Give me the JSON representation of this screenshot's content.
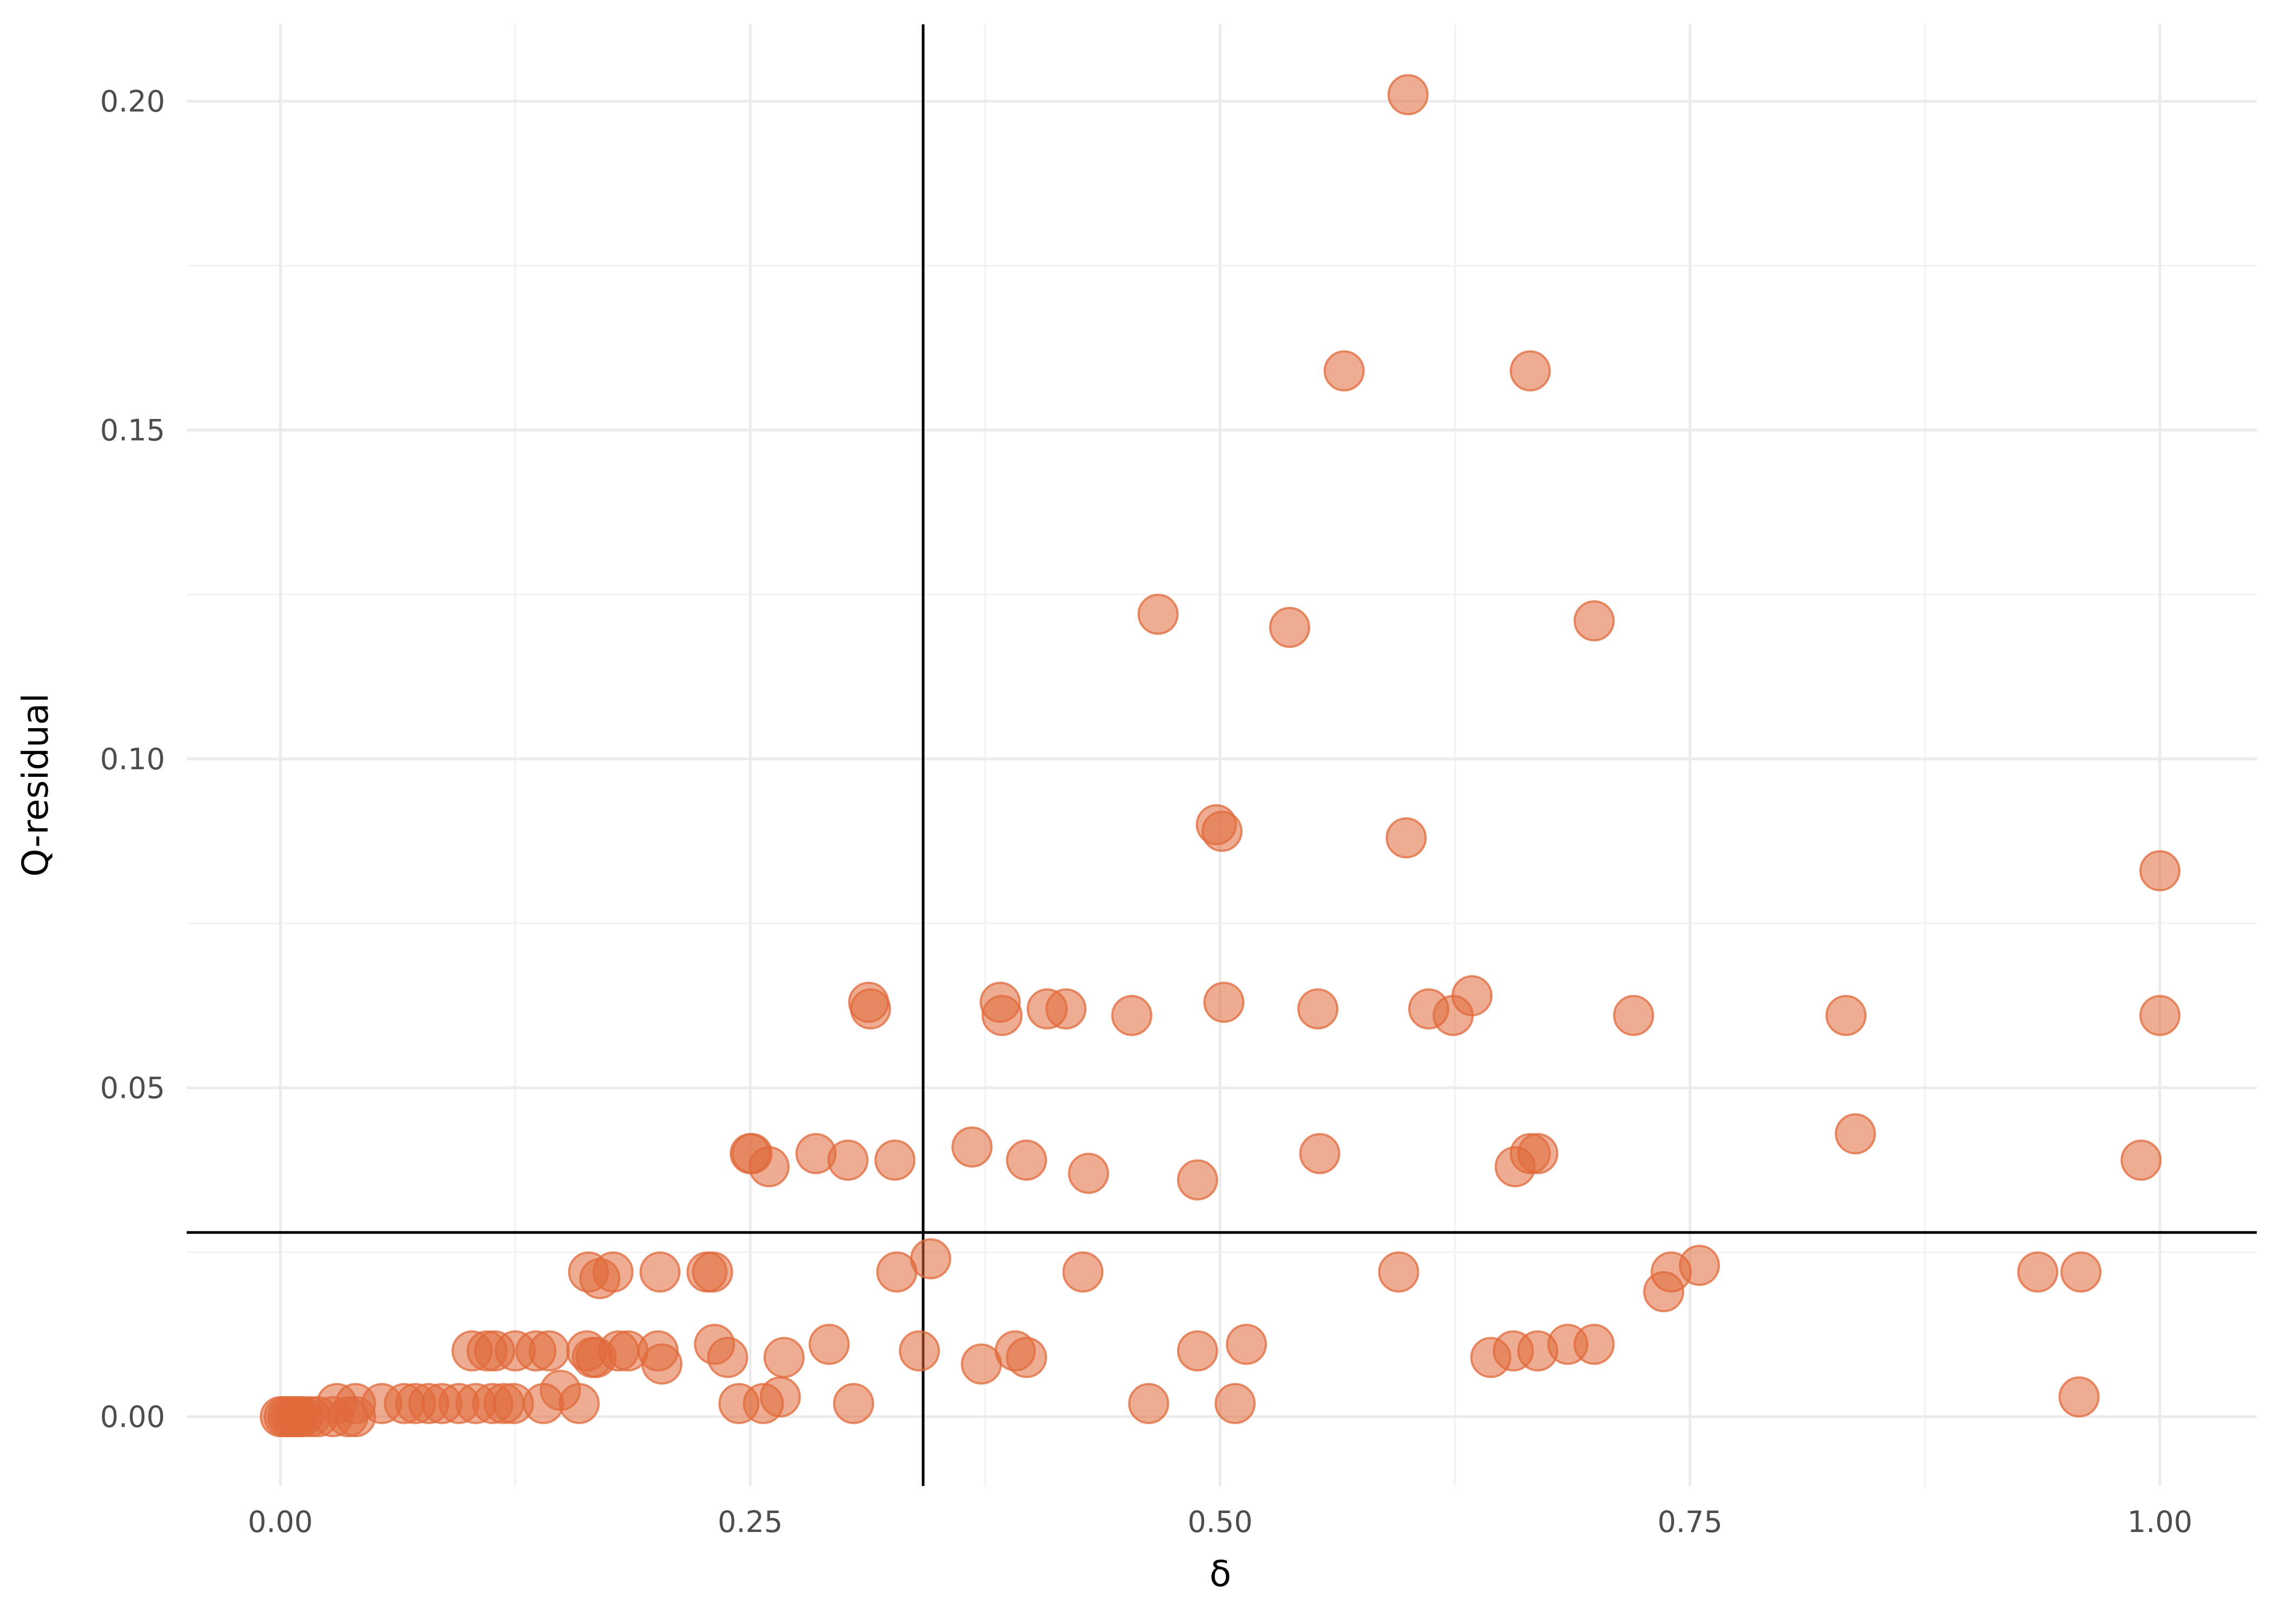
{
  "chart_data": {
    "type": "scatter",
    "xlabel": "δ",
    "ylabel": "Q-residual",
    "xlim": [
      -0.1,
      1.05
    ],
    "ylim": [
      -0.01,
      0.212
    ],
    "x_ticks": [
      0.0,
      0.25,
      0.5,
      0.75,
      1.0
    ],
    "x_tick_labels": [
      "0.00",
      "0.25",
      "0.50",
      "0.75",
      "1.00"
    ],
    "y_ticks": [
      0.0,
      0.05,
      0.1,
      0.15,
      0.2
    ],
    "y_tick_labels": [
      "0.00",
      "0.05",
      "0.10",
      "0.15",
      "0.20"
    ],
    "x_minor": [
      0.125,
      0.375,
      0.625,
      0.875
    ],
    "y_minor": [
      0.025,
      0.075,
      0.125,
      0.175
    ],
    "grid": true,
    "reference_lines": {
      "vertical_x": 0.342,
      "horizontal_y": 0.028
    },
    "point_color": "#e06a3b",
    "points": [
      [
        0.6,
        0.201
      ],
      [
        0.566,
        0.159
      ],
      [
        0.665,
        0.159
      ],
      [
        0.467,
        0.122
      ],
      [
        0.537,
        0.12
      ],
      [
        0.699,
        0.121
      ],
      [
        0.498,
        0.09
      ],
      [
        0.501,
        0.089
      ],
      [
        0.599,
        0.088
      ],
      [
        1.0,
        0.083
      ],
      [
        0.313,
        0.063
      ],
      [
        0.314,
        0.062
      ],
      [
        0.383,
        0.063
      ],
      [
        0.384,
        0.061
      ],
      [
        0.408,
        0.062
      ],
      [
        0.418,
        0.062
      ],
      [
        0.453,
        0.061
      ],
      [
        0.502,
        0.063
      ],
      [
        0.552,
        0.062
      ],
      [
        0.611,
        0.062
      ],
      [
        0.624,
        0.061
      ],
      [
        0.634,
        0.064
      ],
      [
        0.72,
        0.061
      ],
      [
        0.833,
        0.061
      ],
      [
        1.0,
        0.061
      ],
      [
        0.25,
        0.04
      ],
      [
        0.251,
        0.04
      ],
      [
        0.26,
        0.038
      ],
      [
        0.285,
        0.04
      ],
      [
        0.302,
        0.039
      ],
      [
        0.327,
        0.039
      ],
      [
        0.368,
        0.041
      ],
      [
        0.397,
        0.039
      ],
      [
        0.43,
        0.037
      ],
      [
        0.488,
        0.036
      ],
      [
        0.553,
        0.04
      ],
      [
        0.657,
        0.038
      ],
      [
        0.665,
        0.04
      ],
      [
        0.669,
        0.04
      ],
      [
        0.838,
        0.043
      ],
      [
        0.99,
        0.039
      ],
      [
        0.164,
        0.022
      ],
      [
        0.17,
        0.021
      ],
      [
        0.177,
        0.022
      ],
      [
        0.202,
        0.022
      ],
      [
        0.227,
        0.022
      ],
      [
        0.23,
        0.022
      ],
      [
        0.328,
        0.022
      ],
      [
        0.346,
        0.024
      ],
      [
        0.427,
        0.022
      ],
      [
        0.595,
        0.022
      ],
      [
        0.736,
        0.019
      ],
      [
        0.74,
        0.022
      ],
      [
        0.755,
        0.023
      ],
      [
        0.935,
        0.022
      ],
      [
        0.958,
        0.022
      ],
      [
        0.102,
        0.01
      ],
      [
        0.11,
        0.01
      ],
      [
        0.114,
        0.01
      ],
      [
        0.125,
        0.01
      ],
      [
        0.136,
        0.01
      ],
      [
        0.143,
        0.01
      ],
      [
        0.163,
        0.01
      ],
      [
        0.166,
        0.009
      ],
      [
        0.168,
        0.009
      ],
      [
        0.18,
        0.01
      ],
      [
        0.185,
        0.01
      ],
      [
        0.201,
        0.01
      ],
      [
        0.203,
        0.008
      ],
      [
        0.231,
        0.011
      ],
      [
        0.238,
        0.009
      ],
      [
        0.268,
        0.009
      ],
      [
        0.292,
        0.011
      ],
      [
        0.34,
        0.01
      ],
      [
        0.373,
        0.008
      ],
      [
        0.391,
        0.01
      ],
      [
        0.397,
        0.009
      ],
      [
        0.488,
        0.01
      ],
      [
        0.514,
        0.011
      ],
      [
        0.644,
        0.009
      ],
      [
        0.656,
        0.01
      ],
      [
        0.669,
        0.01
      ],
      [
        0.685,
        0.011
      ],
      [
        0.699,
        0.011
      ],
      [
        0.03,
        0.002
      ],
      [
        0.04,
        0.002
      ],
      [
        0.054,
        0.002
      ],
      [
        0.066,
        0.002
      ],
      [
        0.072,
        0.002
      ],
      [
        0.079,
        0.002
      ],
      [
        0.086,
        0.002
      ],
      [
        0.095,
        0.002
      ],
      [
        0.104,
        0.002
      ],
      [
        0.113,
        0.002
      ],
      [
        0.119,
        0.002
      ],
      [
        0.124,
        0.002
      ],
      [
        0.14,
        0.002
      ],
      [
        0.149,
        0.004
      ],
      [
        0.159,
        0.002
      ],
      [
        0.244,
        0.002
      ],
      [
        0.257,
        0.002
      ],
      [
        0.266,
        0.003
      ],
      [
        0.305,
        0.002
      ],
      [
        0.462,
        0.002
      ],
      [
        0.508,
        0.002
      ],
      [
        0.957,
        0.003
      ],
      [
        0.0,
        0.0
      ],
      [
        0.002,
        0.0
      ],
      [
        0.004,
        0.0
      ],
      [
        0.006,
        0.0
      ],
      [
        0.008,
        0.0
      ],
      [
        0.01,
        0.0
      ],
      [
        0.012,
        0.0
      ],
      [
        0.016,
        0.0
      ],
      [
        0.02,
        0.0
      ],
      [
        0.028,
        0.0
      ],
      [
        0.036,
        0.0
      ],
      [
        0.04,
        0.0
      ]
    ]
  }
}
